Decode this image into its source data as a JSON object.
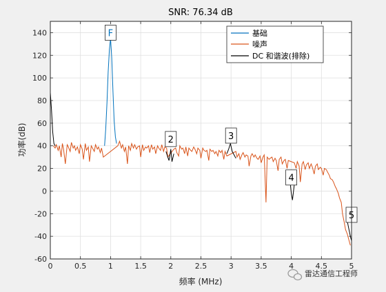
{
  "chart_data": {
    "type": "line",
    "title": "SNR:  76.34 dB",
    "xlabel": "频率 (MHz)",
    "ylabel": "功率(dB)",
    "xlim": [
      0,
      5
    ],
    "ylim": [
      -60,
      150
    ],
    "x_ticks": [
      0,
      0.5,
      1,
      1.5,
      2,
      2.5,
      3,
      3.5,
      4,
      4.5,
      5
    ],
    "x_tick_labels": [
      "0",
      "0.5",
      "1",
      "1.5",
      "2",
      "2.5",
      "3",
      "3.5",
      "4",
      "4.5",
      "5"
    ],
    "y_ticks": [
      -60,
      -40,
      -20,
      0,
      20,
      40,
      60,
      80,
      100,
      120,
      140
    ],
    "grid": true,
    "legend_position": "top-right",
    "series": [
      {
        "name": "基础",
        "color": "#0072bd",
        "x": [
          0.9,
          0.92,
          0.94,
          0.96,
          0.98,
          1.0,
          1.02,
          1.04,
          1.06,
          1.08,
          1.1
        ],
        "y": [
          40,
          55,
          78,
          105,
          125,
          135,
          118,
          88,
          62,
          48,
          42
        ]
      },
      {
        "name": "噪声",
        "color": "#d95319",
        "x": [
          0.05,
          0.08,
          0.1,
          0.13,
          0.15,
          0.18,
          0.2,
          0.22,
          0.25,
          0.28,
          0.3,
          0.33,
          0.35,
          0.38,
          0.4,
          0.42,
          0.45,
          0.48,
          0.5,
          0.53,
          0.55,
          0.58,
          0.6,
          0.63,
          0.65,
          0.68,
          0.7,
          0.73,
          0.75,
          0.78,
          0.8,
          0.83,
          0.85,
          0.88,
          1.12,
          1.15,
          1.18,
          1.2,
          1.23,
          1.25,
          1.28,
          1.3,
          1.33,
          1.35,
          1.38,
          1.4,
          1.43,
          1.45,
          1.48,
          1.5,
          1.53,
          1.55,
          1.58,
          1.6,
          1.63,
          1.65,
          1.68,
          1.7,
          1.73,
          1.75,
          1.78,
          1.8,
          1.83,
          1.85,
          1.88,
          1.9,
          1.93,
          1.95,
          2.05,
          2.08,
          2.1,
          2.13,
          2.15,
          2.18,
          2.2,
          2.23,
          2.25,
          2.28,
          2.3,
          2.33,
          2.35,
          2.38,
          2.4,
          2.43,
          2.45,
          2.48,
          2.5,
          2.53,
          2.55,
          2.58,
          2.6,
          2.63,
          2.65,
          2.68,
          2.7,
          2.73,
          2.75,
          2.78,
          2.8,
          2.83,
          2.85,
          2.88,
          2.9,
          2.93,
          3.08,
          3.1,
          3.13,
          3.15,
          3.18,
          3.2,
          3.23,
          3.25,
          3.28,
          3.3,
          3.33,
          3.35,
          3.38,
          3.4,
          3.43,
          3.45,
          3.48,
          3.5,
          3.53,
          3.55,
          3.58,
          3.6,
          3.63,
          3.65,
          3.68,
          3.7,
          3.73,
          3.75,
          3.78,
          3.8,
          3.83,
          3.85,
          3.88,
          3.9,
          3.93,
          3.95,
          4.05,
          4.08,
          4.1,
          4.13,
          4.15,
          4.18,
          4.2,
          4.23,
          4.25,
          4.28,
          4.3,
          4.33,
          4.35,
          4.38,
          4.4,
          4.43,
          4.45,
          4.48,
          4.5,
          4.53,
          4.55,
          4.58,
          4.6,
          4.63,
          4.65,
          4.68,
          4.7,
          4.73,
          4.75,
          4.78,
          4.8,
          4.83,
          4.85,
          4.88,
          4.9,
          4.93,
          4.95,
          4.98
        ],
        "y": [
          40,
          38,
          41,
          36,
          40,
          30,
          42,
          37,
          24,
          41,
          39,
          35,
          43,
          38,
          40,
          36,
          39,
          33,
          41,
          37,
          28,
          42,
          36,
          39,
          26,
          40,
          38,
          35,
          41,
          37,
          39,
          34,
          38,
          30,
          40,
          44,
          38,
          41,
          35,
          39,
          24,
          40,
          36,
          42,
          38,
          41,
          37,
          39,
          40,
          30,
          41,
          36,
          39,
          38,
          40,
          34,
          41,
          37,
          39,
          33,
          40,
          38,
          36,
          41,
          35,
          39,
          38,
          30,
          37,
          38,
          34,
          31,
          40,
          37,
          38,
          33,
          39,
          31,
          38,
          36,
          35,
          39,
          37,
          33,
          38,
          36,
          29,
          38,
          36,
          35,
          36,
          27,
          37,
          35,
          36,
          33,
          35,
          31,
          36,
          34,
          36,
          28,
          35,
          31,
          35,
          30,
          33,
          28,
          32,
          34,
          30,
          32,
          31,
          22,
          31,
          33,
          30,
          32,
          29,
          28,
          31,
          25,
          30,
          32,
          -10,
          30,
          28,
          29,
          30,
          26,
          29,
          27,
          18,
          28,
          30,
          24,
          27,
          28,
          20,
          27,
          25,
          20,
          26,
          22,
          8,
          24,
          26,
          19,
          23,
          25,
          20,
          24,
          21,
          15,
          22,
          24,
          19,
          21,
          20,
          14,
          20,
          19,
          17,
          14,
          11,
          10,
          8,
          4,
          2,
          -2,
          -6,
          -10,
          -20,
          -28,
          -34,
          -38,
          -42,
          -48
        ]
      },
      {
        "name": "DC 和谐波(排除)",
        "color": "#000000",
        "segments": [
          {
            "x": [
              0,
              0.02,
              0.04,
              0.06,
              0.08
            ],
            "y": [
              87,
              72,
              52,
              42,
              40
            ]
          },
          {
            "x": [
              1.92,
              1.95,
              1.97,
              2.0,
              2.02,
              2.05
            ],
            "y": [
              35,
              30,
              27,
              37,
              26,
              33
            ]
          },
          {
            "x": [
              2.93,
              2.96,
              2.99,
              3.02,
              3.05,
              3.08
            ],
            "y": [
              33,
              37,
              42,
              35,
              32,
              29
            ]
          },
          {
            "x": [
              3.95,
              3.98,
              4.0,
              4.02,
              4.05
            ],
            "y": [
              14,
              8,
              -2,
              -8,
              6
            ]
          },
          {
            "x": [
              4.92,
              4.95,
              4.98,
              5.0
            ],
            "y": [
              -24,
              -32,
              -40,
              -44
            ]
          }
        ]
      }
    ],
    "annotations": [
      {
        "label": "F",
        "x": 1.0,
        "y": 140,
        "color": "#0072bd"
      },
      {
        "label": "2",
        "x": 2.0,
        "y": 46,
        "color": "#000000"
      },
      {
        "label": "3",
        "x": 3.0,
        "y": 49,
        "color": "#000000"
      },
      {
        "label": "4",
        "x": 4.0,
        "y": 12,
        "color": "#000000"
      },
      {
        "label": "5",
        "x": 5.0,
        "y": -21,
        "color": "#000000"
      }
    ]
  },
  "watermark": {
    "text": "雷达通信工程师"
  }
}
